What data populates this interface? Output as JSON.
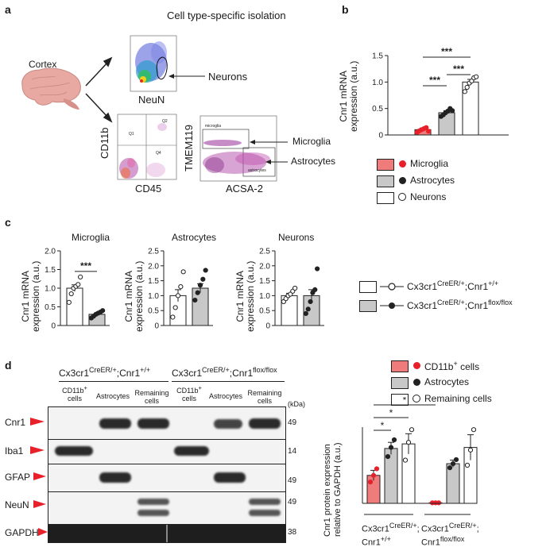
{
  "panel_a": {
    "label": "a",
    "title": "Cell type-specific isolation",
    "cortex": "Cortex",
    "neurons": "Neurons",
    "neun": "NeuN",
    "cd11b": "CD11b",
    "cd45": "CD45",
    "tmem119": "TMEM119",
    "acsa2": "ACSA-2",
    "microglia": "Microglia",
    "astrocytes": "Astrocytes",
    "gate_microglia": "microglia",
    "gate_astrocytes": "astrocytes",
    "q1": "Q1",
    "q2": "Q2",
    "q4": "Q4",
    "colors": {
      "brain": "#e8a9a3",
      "scatter": "#b24aa8",
      "flow": "#2f4fd0"
    }
  },
  "panel_b": {
    "label": "b",
    "ylabel": "Cnr1 mRNA\nexpression (a.u.)",
    "legend": [
      "Microglia",
      "Astrocytes",
      "Neurons"
    ],
    "sig": [
      "***",
      "***",
      "***"
    ]
  },
  "panel_c": {
    "label": "c",
    "titles": [
      "Microglia",
      "Astrocytes",
      "Neurons"
    ],
    "ylabel": "Cnr1 mRNA\nexpression (a.u.)",
    "sig": "***",
    "legend": [
      {
        "base": "Cx3cr1",
        "sup1": "CreER/+",
        "mid": ";Cnr1",
        "sup2": "+/+"
      },
      {
        "base": "Cx3cr1",
        "sup1": "CreER/+",
        "mid": ";Cnr1",
        "sup2": "flox/flox"
      }
    ]
  },
  "panel_d": {
    "label": "d",
    "group1": {
      "base": "Cx3cr1",
      "sup1": "CreER/+",
      "mid": ";Cnr1",
      "sup2": "+/+"
    },
    "group2": {
      "base": "Cx3cr1",
      "sup1": "CreER/+",
      "mid": ";Cnr1",
      "sup2": "flox/flox"
    },
    "lanes": [
      "CD11b+ cells",
      "Astrocytes",
      "Remaining cells"
    ],
    "lane_cd11b": "CD11b",
    "lane_plus": "+",
    "lane_cells": "cells",
    "kda": "(kDa)",
    "rows": [
      {
        "name": "Cnr1",
        "mw": "49"
      },
      {
        "name": "Iba1",
        "mw": "14"
      },
      {
        "name": "GFAP",
        "mw": "49"
      },
      {
        "name": "NeuN",
        "mw": "49"
      },
      {
        "name": "GAPDH",
        "mw": "38"
      }
    ],
    "legend": [
      "CD11b+ cells",
      "Astrocytes",
      "Remaining cells"
    ],
    "legend_cd11b": "CD11b",
    "legend_plus": "+",
    "legend_cells": " cells",
    "ylabel1": "Cnr1 protein expression",
    "ylabel2": "relative to GAPDH (a.u.)",
    "sig": [
      "*",
      "*",
      "*"
    ],
    "xgroups": [
      {
        "l1": "Cx3cr1",
        "s1": "CreER/+",
        "l1b": ";",
        "l2": "Cnr1",
        "s2": "+/+"
      },
      {
        "l1": "Cx3cr1",
        "s1": "CreER/+",
        "l1b": ";",
        "l2": "Cnr1",
        "s2": "flox/flox"
      }
    ]
  },
  "colors": {
    "red": "#f07b7b",
    "reddot": "#e8202a",
    "grey": "#c8c8c8",
    "white": "#ffffff",
    "arrow": "#e8202a"
  },
  "chart_data": [
    {
      "type": "bar",
      "id": "b",
      "categories": [
        "Microglia",
        "Astrocytes",
        "Neurons"
      ],
      "values": [
        0.1,
        0.42,
        1.0
      ],
      "errors": [
        0.03,
        0.04,
        0.05
      ],
      "points": [
        [
          0.05,
          0.08,
          0.1,
          0.12,
          0.14,
          0.07
        ],
        [
          0.35,
          0.38,
          0.42,
          0.45,
          0.5,
          0.46
        ],
        [
          0.82,
          0.9,
          0.98,
          1.02,
          1.08,
          1.1
        ]
      ],
      "ylabel": "Cnr1 mRNA expression (a.u.)",
      "ylim": [
        0,
        1.5
      ],
      "yticks": [
        0,
        0.5,
        1.0,
        1.5
      ],
      "significance": [
        "***",
        "***",
        "***"
      ]
    },
    {
      "type": "bar",
      "id": "c-microglia",
      "title": "Microglia",
      "categories": [
        "Cx3cr1CreER/+;Cnr1+/+",
        "Cx3cr1CreER/+;Cnr1flox/flox"
      ],
      "values": [
        1.0,
        0.3
      ],
      "errors": [
        0.09,
        0.03
      ],
      "points": [
        [
          0.62,
          0.85,
          1.0,
          1.05,
          1.1,
          1.3
        ],
        [
          0.2,
          0.25,
          0.3,
          0.33,
          0.36,
          0.4
        ]
      ],
      "ylim": [
        0,
        2.0
      ],
      "yticks": [
        0,
        0.5,
        1.0,
        1.5,
        2.0
      ],
      "significance": "***"
    },
    {
      "type": "bar",
      "id": "c-astrocytes",
      "title": "Astrocytes",
      "categories": [
        "Cx3cr1CreER/+;Cnr1+/+",
        "Cx3cr1CreER/+;Cnr1flox/flox"
      ],
      "values": [
        1.0,
        1.25
      ],
      "errors": [
        0.2,
        0.15
      ],
      "points": [
        [
          0.28,
          0.6,
          1.0,
          1.3,
          1.8
        ],
        [
          0.85,
          1.1,
          1.35,
          1.55,
          1.85
        ]
      ],
      "ylim": [
        0,
        2.5
      ],
      "yticks": [
        0,
        0.5,
        1.0,
        1.5,
        2.0,
        2.5
      ]
    },
    {
      "type": "bar",
      "id": "c-neurons",
      "title": "Neurons",
      "categories": [
        "Cx3cr1CreER/+;Cnr1+/+",
        "Cx3cr1CreER/+;Cnr1flox/flox"
      ],
      "values": [
        1.0,
        1.0
      ],
      "errors": [
        0.08,
        0.2
      ],
      "points": [
        [
          0.8,
          0.9,
          1.0,
          1.05,
          1.15,
          1.25
        ],
        [
          0.4,
          0.55,
          0.8,
          1.1,
          1.2,
          1.9
        ]
      ],
      "ylim": [
        0,
        2.5
      ],
      "yticks": [
        0,
        0.5,
        1.0,
        1.5,
        2.0,
        2.5
      ]
    },
    {
      "type": "bar",
      "id": "d",
      "categories": [
        "CD11b+ cells",
        "Astrocytes",
        "Remaining cells",
        "CD11b+ cells",
        "Astrocytes",
        "Remaining cells"
      ],
      "values": [
        0.55,
        1.08,
        1.17,
        0.01,
        0.78,
        1.1
      ],
      "errors": [
        0.1,
        0.12,
        0.2,
        0.01,
        0.07,
        0.25
      ],
      "points": [
        [
          0.42,
          0.55,
          0.68
        ],
        [
          0.92,
          1.1,
          1.25
        ],
        [
          0.85,
          1.2,
          1.45
        ],
        [
          0.01,
          0.01,
          0.01
        ],
        [
          0.7,
          0.78,
          0.86
        ],
        [
          0.75,
          1.05,
          1.45
        ]
      ],
      "ylabel": "Cnr1 protein expression relative to GAPDH (a.u.)",
      "ylim": [
        0,
        1.5
      ],
      "significance": [
        "*",
        "*",
        "*"
      ]
    }
  ]
}
